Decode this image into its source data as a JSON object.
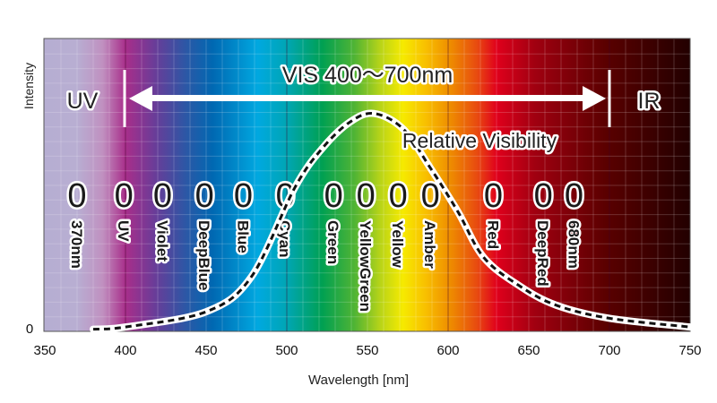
{
  "chart_data": {
    "type": "line",
    "xlabel": "Wavelength [nm]",
    "ylabel": "Intensity",
    "xlim": [
      350,
      750
    ],
    "ylim": [
      0,
      1.34
    ],
    "xticks": [
      350,
      400,
      450,
      500,
      550,
      600,
      650,
      700,
      750
    ],
    "yticks": [
      0
    ],
    "grid": true,
    "background": "visible light spectrum gradient (UV lavender to IR dark red)",
    "series": [
      {
        "name": "Relative Visibility",
        "style": "dashed black on white",
        "x": [
          380,
          400,
          450,
          478,
          505,
          522,
          539,
          554,
          572,
          589,
          606,
          622,
          644,
          667,
          700,
          750
        ],
        "y": [
          0.01,
          0.02,
          0.09,
          0.25,
          0.66,
          0.84,
          0.96,
          1.0,
          0.93,
          0.75,
          0.55,
          0.34,
          0.21,
          0.12,
          0.06,
          0.02
        ]
      }
    ],
    "annotations": {
      "vis_range": "VIS 400〜700nm",
      "vis_start": 400,
      "vis_end": 700,
      "uv": "UV",
      "ir": "IR"
    },
    "leds": [
      {
        "label": "370nm",
        "wavelength": 370
      },
      {
        "label": "UV",
        "wavelength": 399
      },
      {
        "label": "Violet",
        "wavelength": 423
      },
      {
        "label": "DeepBlue",
        "wavelength": 449
      },
      {
        "label": "Blue",
        "wavelength": 473
      },
      {
        "label": "Cyan",
        "wavelength": 499
      },
      {
        "label": "Green",
        "wavelength": 529
      },
      {
        "label": "YellowGreen",
        "wavelength": 549
      },
      {
        "label": "Yellow",
        "wavelength": 569
      },
      {
        "label": "Amber",
        "wavelength": 589
      },
      {
        "label": "Red",
        "wavelength": 628
      },
      {
        "label": "DeepRed",
        "wavelength": 659
      },
      {
        "label": "680nm",
        "wavelength": 678
      }
    ],
    "led_symbol": "0"
  }
}
